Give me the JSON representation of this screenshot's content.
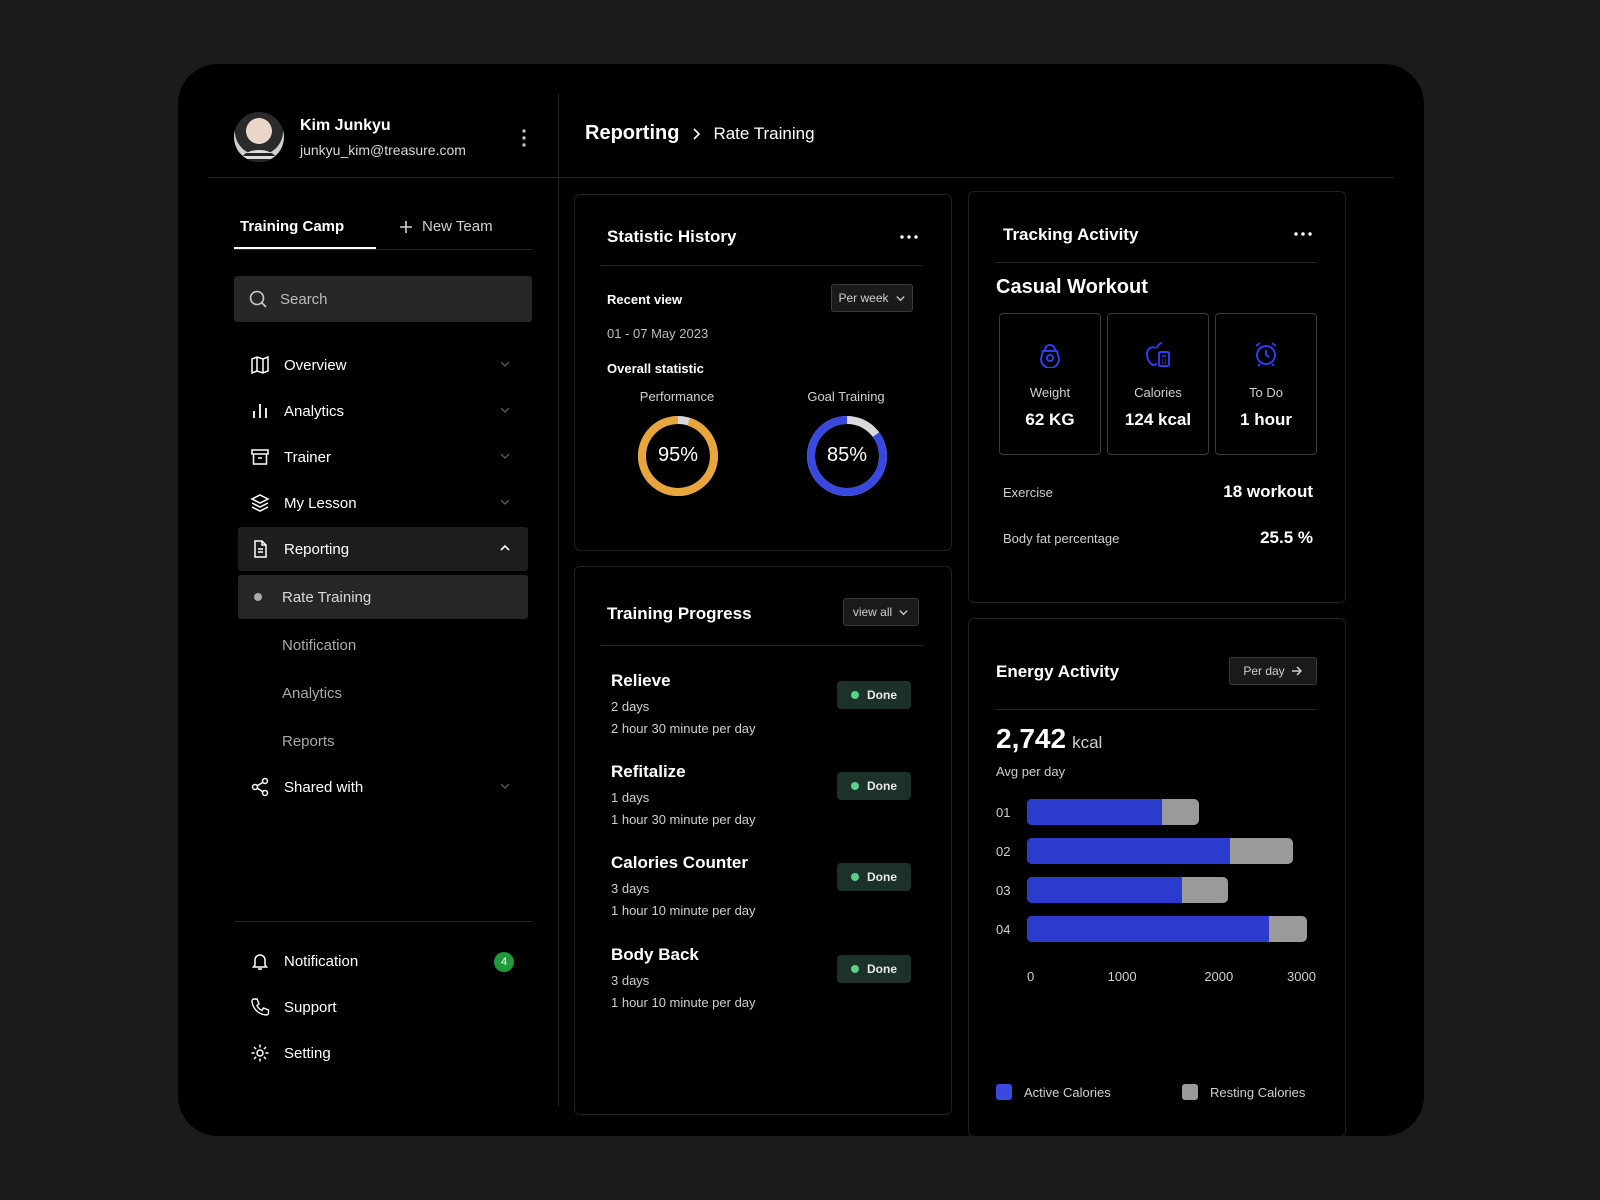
{
  "profile": {
    "name": "Kim Junkyu",
    "email": "junkyu_kim@treasure.com"
  },
  "tabs": {
    "active": "Training Camp",
    "new_team": "New Team"
  },
  "search": {
    "placeholder": "Search"
  },
  "nav": {
    "overview": "Overview",
    "analytics": "Analytics",
    "trainer": "Trainer",
    "my_lesson": "My Lesson",
    "reporting": "Reporting",
    "reporting_sub": [
      "Rate Training",
      "Notification",
      "Analytics",
      "Reports"
    ],
    "shared_with": "Shared with"
  },
  "bottom_nav": {
    "notification": "Notification",
    "notification_count": "4",
    "support": "Support",
    "setting": "Setting"
  },
  "breadcrumb": {
    "parent": "Reporting",
    "current": "Rate Training"
  },
  "statistic_history": {
    "title": "Statistic History",
    "recent_view": "Recent view",
    "period_button": "Per week",
    "date_range": "01 - 07 May 2023",
    "overall": "Overall statistic",
    "performance_label": "Performance",
    "performance_value": "95%",
    "performance_pct": 95,
    "performance_color": "#e7a53c",
    "goal_label": "Goal Training",
    "goal_value": "85%",
    "goal_pct": 85,
    "goal_color": "#3949e0"
  },
  "training_progress": {
    "title": "Training Progress",
    "view_all": "view all",
    "items": [
      {
        "title": "Relieve",
        "days": "2 days",
        "detail": "2 hour 30 minute per day",
        "status": "Done"
      },
      {
        "title": "Refitalize",
        "days": "1 days",
        "detail": "1 hour 30 minute per day",
        "status": "Done"
      },
      {
        "title": "Calories Counter",
        "days": "3 days",
        "detail": "1 hour 10 minute per day",
        "status": "Done"
      },
      {
        "title": "Body Back",
        "days": "3 days",
        "detail": "1 hour 10 minute per day",
        "status": "Done"
      }
    ]
  },
  "tracking_activity": {
    "title": "Tracking Activity",
    "workout": "Casual Workout",
    "stats": [
      {
        "label": "Weight",
        "value": "62 KG",
        "icon": "kettlebell-icon"
      },
      {
        "label": "Calories",
        "value": "124 kcal",
        "icon": "apple-calculator-icon"
      },
      {
        "label": "To Do",
        "value": "1 hour",
        "icon": "alarm-clock-icon"
      }
    ],
    "exercise_label": "Exercise",
    "exercise_value": "18 workout",
    "bodyfat_label": "Body fat percentage",
    "bodyfat_value": "25.5 %"
  },
  "energy_activity": {
    "title": "Energy Activity",
    "period_button": "Per day",
    "total": "2,742",
    "unit": "kcal",
    "avg_label": "Avg per day"
  },
  "chart_data": {
    "type": "bar",
    "orientation": "horizontal",
    "stacked": true,
    "categories": [
      "01",
      "02",
      "03",
      "04"
    ],
    "series": [
      {
        "name": "Active Calories",
        "values": [
          1400,
          2100,
          1600,
          2500
        ],
        "color": "#2b3bcc"
      },
      {
        "name": "Resting Calories",
        "values": [
          380,
          650,
          480,
          400
        ],
        "color": "#9a9a9a"
      }
    ],
    "x_ticks": [
      "0",
      "1000",
      "2000",
      "3000"
    ],
    "xlim": [
      0,
      3000
    ],
    "legend_placement": "bottom"
  }
}
